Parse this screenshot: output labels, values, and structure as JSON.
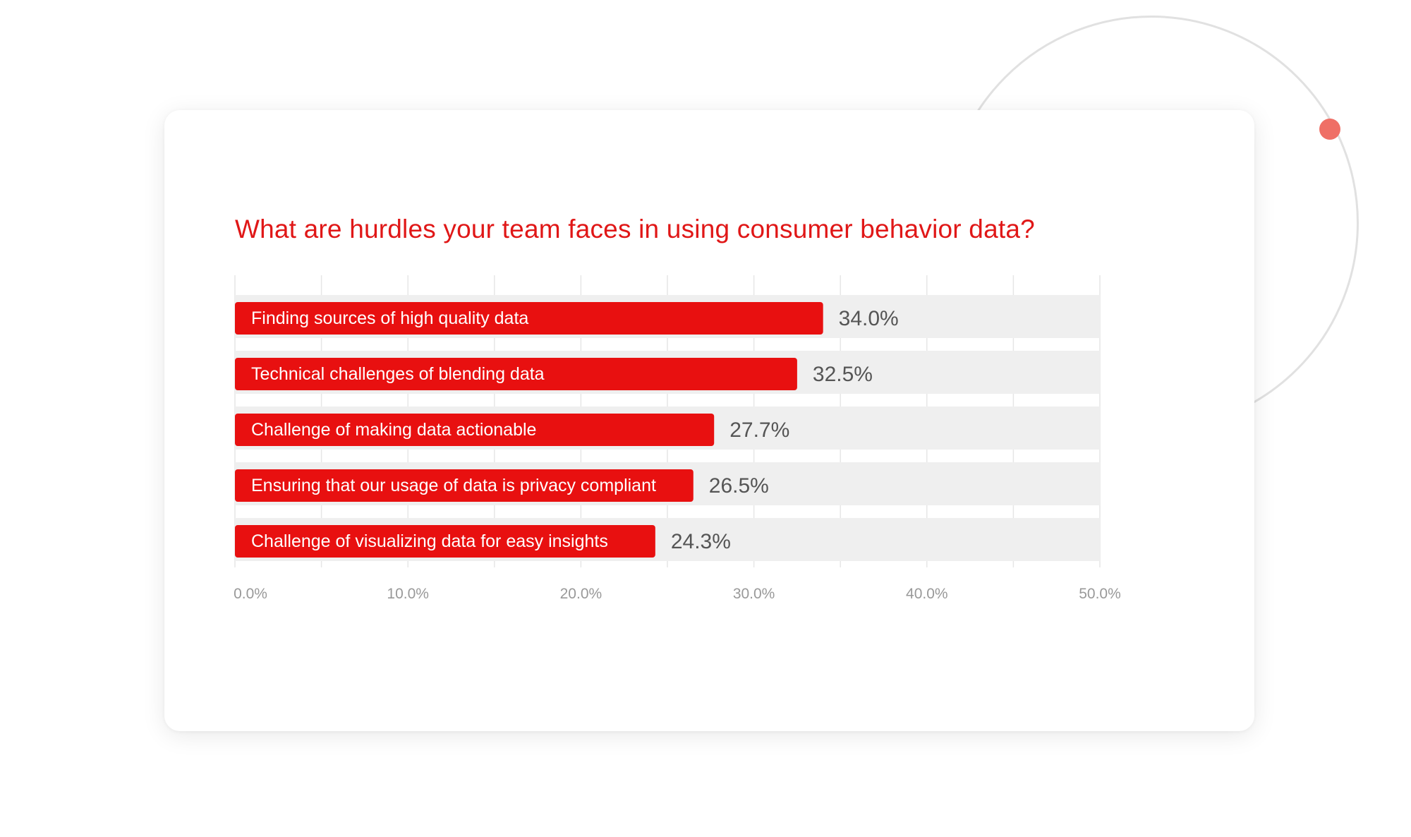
{
  "colors": {
    "accent": "#e81010",
    "title": "#e01717",
    "track": "#efefef",
    "value_text": "#555555",
    "tick_text": "#999999",
    "grid": "#e6e6e6",
    "dot": "#ef6f66"
  },
  "chart_data": {
    "type": "bar",
    "orientation": "horizontal",
    "title": "What are hurdles your team faces in using consumer behavior data?",
    "categories": [
      "Finding sources of high quality data",
      "Technical challenges of blending data",
      "Challenge of making data actionable",
      "Ensuring that our usage of data is privacy compliant",
      "Challenge of visualizing data for easy insights"
    ],
    "values": [
      34.0,
      32.5,
      27.7,
      26.5,
      24.3
    ],
    "value_labels": [
      "34.0%",
      "32.5%",
      "27.7%",
      "26.5%",
      "24.3%"
    ],
    "xlim": [
      0,
      50
    ],
    "x_ticks": [
      0,
      10,
      20,
      30,
      40,
      50
    ],
    "x_tick_labels": [
      "0.0%",
      "10.0%",
      "20.0%",
      "30.0%",
      "40.0%",
      "50.0%"
    ],
    "grid": true,
    "legend": "none"
  }
}
